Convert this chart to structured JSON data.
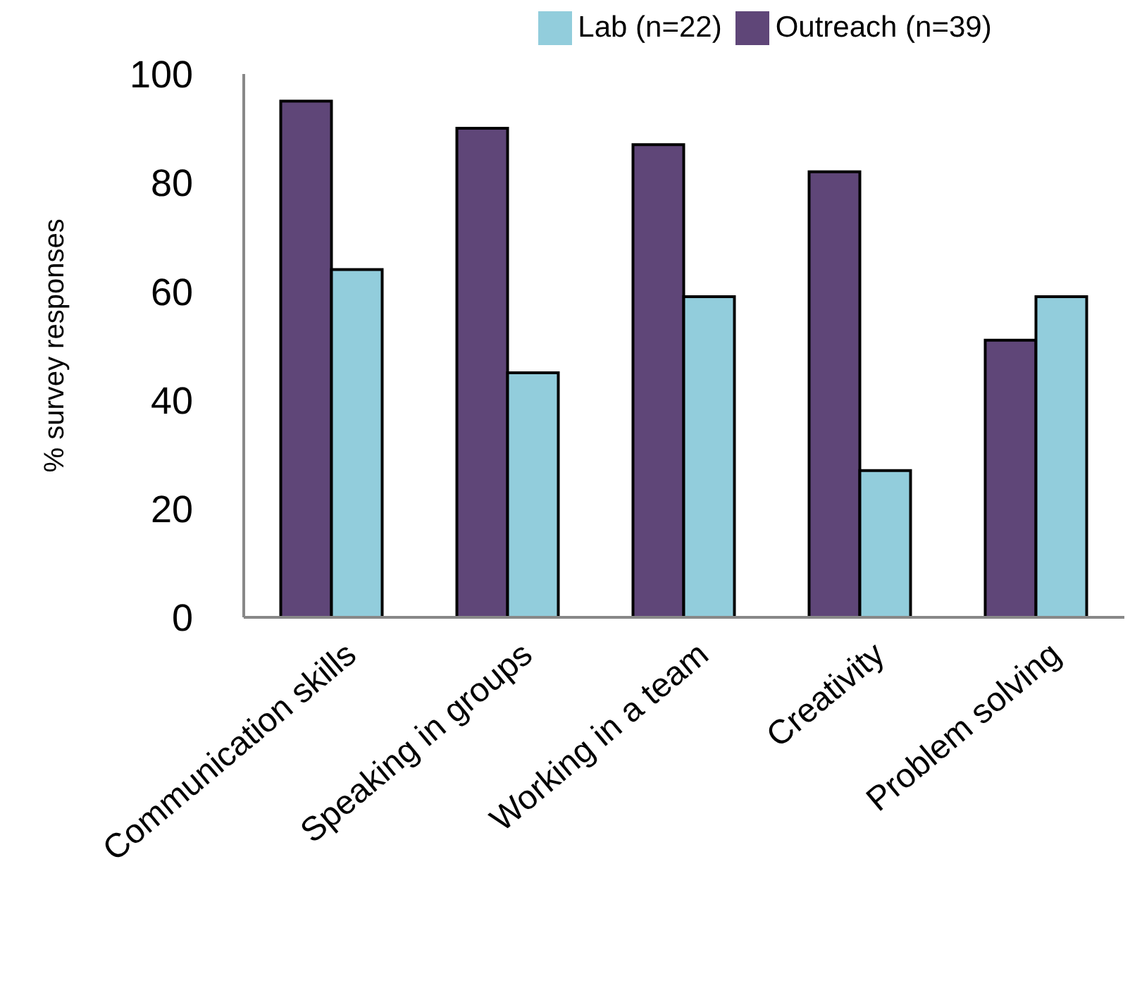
{
  "chart_data": {
    "type": "bar",
    "ylabel": "% survey responses",
    "categories": [
      "Communication skills",
      "Speaking in groups",
      "Working in a team",
      "Creativity",
      "Problem solving"
    ],
    "series": [
      {
        "name": "Outreach (n=39)",
        "color": "#5f4678",
        "values": [
          95,
          90,
          87,
          82,
          51
        ]
      },
      {
        "name": "Lab (n=22)",
        "color": "#92cddc",
        "values": [
          64,
          45,
          59,
          27,
          59
        ]
      }
    ],
    "ylim": [
      0,
      100
    ],
    "yticks": [
      0,
      20,
      40,
      60,
      80,
      100
    ],
    "grid": false,
    "legend": "top"
  }
}
